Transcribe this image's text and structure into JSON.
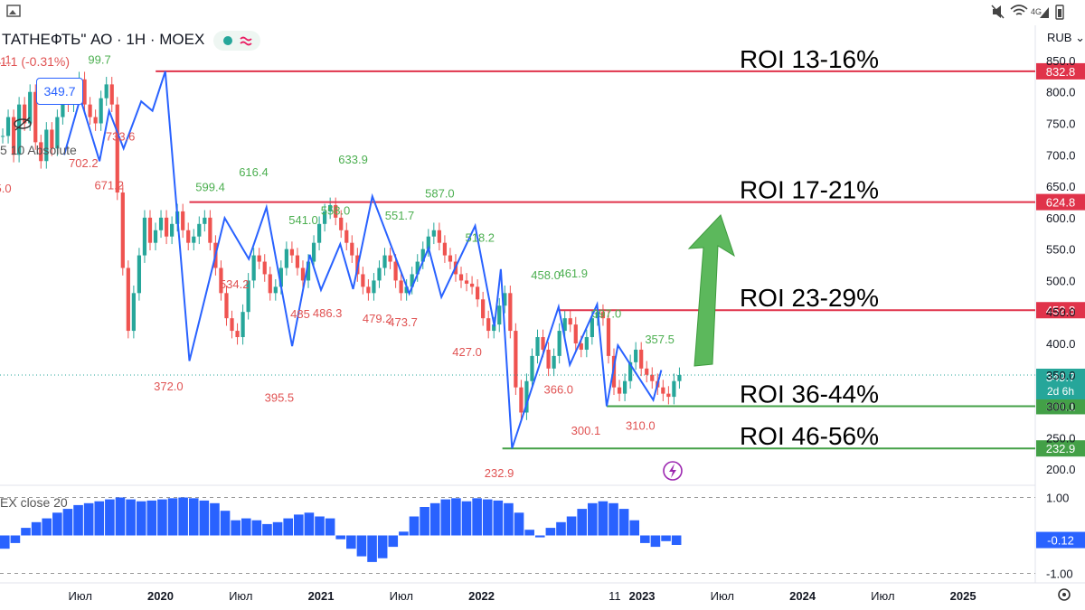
{
  "status_bar": {
    "network": "4G"
  },
  "header": {
    "title": "ТАТНЕФТЬ\" АО · 1Н · MOEX",
    "change": "1.1 (-0.31%)",
    "last_price": "349.7",
    "indicator_label": "5 10 Absolute",
    "oscillator_label": "EX close 20",
    "currency": "RUB"
  },
  "chart_data": {
    "type": "line",
    "x_ticks": [
      "Июл",
      "2020",
      "Июл",
      "2021",
      "Июл",
      "2022",
      "11",
      "2023",
      "Июл",
      "2024",
      "Июл",
      "2025"
    ],
    "y_ticks": [
      "850.0",
      "800.0",
      "750.0",
      "700.0",
      "650.0",
      "600.0",
      "550.0",
      "500.0",
      "450.0",
      "400.0",
      "350.0",
      "300.0",
      "250.0",
      "200.0"
    ],
    "ylim": [
      180,
      860
    ],
    "oscillator_ticks": [
      "1.00",
      "-1.00"
    ],
    "oscillator_ylim": [
      -1.25,
      1.25
    ],
    "levels": [
      {
        "value": 832.8,
        "label": "832.8",
        "color": "#e0334a",
        "start_year": 2019.97,
        "roi": "ROI 13-16%"
      },
      {
        "value": 624.8,
        "label": "624.8",
        "color": "#e0334a",
        "start_year": 2020.18,
        "roi": "ROI 17-21%"
      },
      {
        "value": 452.8,
        "label": "452.8",
        "color": "#e0334a",
        "start_year": 2022.48,
        "roi": "ROI 23-29%"
      },
      {
        "value": 300.1,
        "label": "300.1",
        "color": "#43a047",
        "start_year": 2022.78,
        "roi": "ROI 36-44%"
      },
      {
        "value": 232.9,
        "label": "232.9",
        "color": "#43a047",
        "start_year": 2022.13,
        "roi": "ROI 46-56%"
      }
    ],
    "current_price": {
      "label": "349.7",
      "value": 349.7,
      "countdown": "2d 6h"
    },
    "oscillator_value": {
      "label": "-0.12",
      "value": -0.12
    },
    "zigzag": [
      {
        "x": 2019.4,
        "y": 700
      },
      {
        "x": 2019.5,
        "y": 790
      },
      {
        "x": 2019.62,
        "y": 690
      },
      {
        "x": 2019.68,
        "y": 770
      },
      {
        "x": 2019.77,
        "y": 710
      },
      {
        "x": 2019.88,
        "y": 785
      },
      {
        "x": 2019.95,
        "y": 770
      },
      {
        "x": 2020.03,
        "y": 832.8
      },
      {
        "x": 2020.18,
        "y": 372.0
      },
      {
        "x": 2020.4,
        "y": 599.4
      },
      {
        "x": 2020.55,
        "y": 534.2
      },
      {
        "x": 2020.66,
        "y": 616.4
      },
      {
        "x": 2020.82,
        "y": 395.5
      },
      {
        "x": 2020.93,
        "y": 541.0
      },
      {
        "x": 2021.0,
        "y": 485.0
      },
      {
        "x": 2021.12,
        "y": 558.0
      },
      {
        "x": 2021.2,
        "y": 486.3
      },
      {
        "x": 2021.32,
        "y": 633.9
      },
      {
        "x": 2021.55,
        "y": 479.2
      },
      {
        "x": 2021.67,
        "y": 551.7
      },
      {
        "x": 2021.75,
        "y": 473.7
      },
      {
        "x": 2021.96,
        "y": 587.0
      },
      {
        "x": 2022.08,
        "y": 427.0
      },
      {
        "x": 2022.12,
        "y": 518.2
      },
      {
        "x": 2022.19,
        "y": 232.9
      },
      {
        "x": 2022.48,
        "y": 458.0
      },
      {
        "x": 2022.55,
        "y": 366.0
      },
      {
        "x": 2022.72,
        "y": 461.9
      },
      {
        "x": 2022.78,
        "y": 300.1
      },
      {
        "x": 2022.85,
        "y": 397.0
      },
      {
        "x": 2023.07,
        "y": 310.0
      },
      {
        "x": 2023.12,
        "y": 357.5
      }
    ],
    "point_labels": [
      {
        "text": "1.1 ",
        "x": 2019.02,
        "y": 845,
        "color": "#e05252"
      },
      {
        "text": "99.7",
        "x": 2019.62,
        "y": 845,
        "color": "#4caf50"
      },
      {
        "text": "733.6",
        "x": 2019.75,
        "y": 723,
        "color": "#e05252"
      },
      {
        "text": "702.2",
        "x": 2019.52,
        "y": 680,
        "color": "#e05252"
      },
      {
        "text": "671.2",
        "x": 2019.68,
        "y": 645,
        "color": "#e05252"
      },
      {
        "text": "5.0",
        "x": 2019.02,
        "y": 640,
        "color": "#e05252"
      },
      {
        "text": "599.4",
        "x": 2020.31,
        "y": 642,
        "color": "#4caf50"
      },
      {
        "text": "616.4",
        "x": 2020.58,
        "y": 666,
        "color": "#4caf50"
      },
      {
        "text": "633.9",
        "x": 2021.2,
        "y": 686,
        "color": "#4caf50"
      },
      {
        "text": "587.0",
        "x": 2021.74,
        "y": 632,
        "color": "#4caf50"
      },
      {
        "text": "541.0",
        "x": 2020.89,
        "y": 590,
        "color": "#4caf50"
      },
      {
        "text": "558.0",
        "x": 2021.09,
        "y": 605,
        "color": "#4caf50"
      },
      {
        "text": "551.7",
        "x": 2021.49,
        "y": 597,
        "color": "#4caf50"
      },
      {
        "text": "518.2",
        "x": 2021.99,
        "y": 562,
        "color": "#4caf50"
      },
      {
        "text": "458.0",
        "x": 2022.4,
        "y": 502,
        "color": "#4caf50"
      },
      {
        "text": "461.9",
        "x": 2022.57,
        "y": 505,
        "color": "#4caf50"
      },
      {
        "text": "397.0",
        "x": 2022.78,
        "y": 441,
        "color": "#4caf50"
      },
      {
        "text": "357.5",
        "x": 2023.11,
        "y": 400,
        "color": "#4caf50"
      },
      {
        "text": "534.2",
        "x": 2020.46,
        "y": 488,
        "color": "#e05252"
      },
      {
        "text": "485",
        "x": 2020.87,
        "y": 440,
        "color": "#e05252"
      },
      {
        "text": "486.3",
        "x": 2021.04,
        "y": 442,
        "color": "#e05252"
      },
      {
        "text": "479.2",
        "x": 2021.35,
        "y": 433,
        "color": "#e05252"
      },
      {
        "text": "473.7",
        "x": 2021.51,
        "y": 427,
        "color": "#e05252"
      },
      {
        "text": "427.0",
        "x": 2021.91,
        "y": 380,
        "color": "#e05252"
      },
      {
        "text": "372.0",
        "x": 2020.05,
        "y": 325,
        "color": "#e05252"
      },
      {
        "text": "395.5",
        "x": 2020.74,
        "y": 307,
        "color": "#e05252"
      },
      {
        "text": "366.0",
        "x": 2022.48,
        "y": 320,
        "color": "#e05252"
      },
      {
        "text": "300.1",
        "x": 2022.65,
        "y": 255,
        "color": "#e05252"
      },
      {
        "text": "310.0",
        "x": 2022.99,
        "y": 263,
        "color": "#e05252"
      },
      {
        "text": "232.9",
        "x": 2022.11,
        "y": 187,
        "color": "#e05252"
      }
    ],
    "candles_close": [
      730,
      760,
      700,
      780,
      750,
      800,
      720,
      690,
      740,
      710,
      760,
      790,
      780,
      800,
      820,
      780,
      760,
      750,
      790,
      812,
      780,
      640,
      520,
      420,
      480,
      540,
      600,
      560,
      580,
      600,
      570,
      590,
      610,
      580,
      560,
      570,
      590,
      600,
      560,
      520,
      480,
      440,
      420,
      410,
      450,
      500,
      540,
      530,
      510,
      480,
      490,
      520,
      550,
      540,
      520,
      500,
      530,
      560,
      590,
      610,
      620,
      600,
      580,
      560,
      540,
      510,
      490,
      480,
      500,
      520,
      540,
      530,
      500,
      480,
      490,
      510,
      530,
      550,
      570,
      580,
      560,
      540,
      530,
      510,
      500,
      495,
      490,
      470,
      440,
      420,
      430,
      460,
      480,
      420,
      330,
      290,
      340,
      380,
      410,
      390,
      360,
      380,
      420,
      440,
      430,
      400,
      390,
      410,
      440,
      450,
      440,
      380,
      330,
      320,
      340,
      370,
      390,
      360,
      350,
      340,
      330,
      320,
      315,
      340,
      349.7
    ],
    "oscillator_values": [
      -0.35,
      -0.2,
      0.2,
      0.35,
      0.45,
      0.6,
      0.7,
      0.8,
      0.85,
      0.9,
      0.95,
      1.0,
      0.95,
      0.9,
      0.92,
      0.95,
      0.98,
      1.0,
      0.98,
      0.92,
      0.85,
      0.65,
      0.4,
      0.45,
      0.4,
      0.3,
      0.35,
      0.45,
      0.55,
      0.6,
      0.5,
      0.45,
      -0.1,
      -0.35,
      -0.55,
      -0.7,
      -0.6,
      -0.3,
      0.1,
      0.5,
      0.75,
      0.85,
      0.95,
      0.98,
      0.9,
      0.98,
      0.95,
      0.92,
      0.85,
      0.6,
      0.15,
      -0.05,
      0.2,
      0.35,
      0.5,
      0.7,
      0.85,
      0.9,
      0.85,
      0.7,
      0.4,
      -0.2,
      -0.3,
      -0.15,
      -0.25
    ]
  }
}
